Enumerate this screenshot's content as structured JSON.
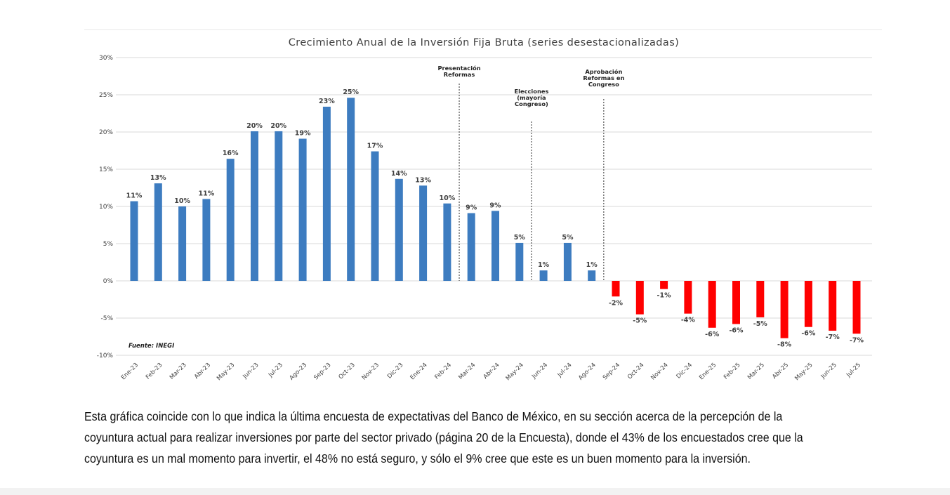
{
  "chart_data": {
    "type": "bar",
    "title": "Crecimiento Anual de la Inversión Fija Bruta (series desestacionalizadas)",
    "xlabel": "",
    "ylabel": "",
    "ylim": [
      -10,
      30
    ],
    "yticks": [
      "30%",
      "25%",
      "20%",
      "15%",
      "10%",
      "5%",
      "0%",
      "-5%",
      "-10%"
    ],
    "ytick_values": [
      30,
      25,
      20,
      15,
      10,
      5,
      0,
      -5,
      -10
    ],
    "grid": true,
    "categories": [
      "Ene-23",
      "Feb-23",
      "Mar-23",
      "Abr-23",
      "May-23",
      "Jun-23",
      "Jul-23",
      "Ago-23",
      "Sep-23",
      "Oct-23",
      "Nov-23",
      "Dic-23",
      "Ene-24",
      "Feb-24",
      "Mar-24",
      "Abr-24",
      "May-24",
      "Jun-24",
      "Jul-24",
      "Ago-24",
      "Sep-24",
      "Oct-24",
      "Nov-24",
      "Dic-24",
      "Ene-25",
      "Feb-25",
      "Mar-25",
      "Abr-25",
      "May-25",
      "Jun-25",
      "Jul-25"
    ],
    "values": [
      10.7,
      13.1,
      10.0,
      11.0,
      16.4,
      20.1,
      20.1,
      19.1,
      23.4,
      24.6,
      17.4,
      13.7,
      12.8,
      10.4,
      9.1,
      9.4,
      5.1,
      1.4,
      5.1,
      1.4,
      -2.1,
      -4.5,
      -1.1,
      -4.4,
      -6.3,
      -5.8,
      -4.9,
      -7.7,
      -6.2,
      -6.7,
      -7.1
    ],
    "labels": [
      "11%",
      "13%",
      "10%",
      "11%",
      "16%",
      "20%",
      "20%",
      "19%",
      "23%",
      "25%",
      "17%",
      "14%",
      "13%",
      "10%",
      "9%",
      "9%",
      "5%",
      "1%",
      "5%",
      "1%",
      "-2%",
      "-5%",
      "-1%",
      "-4%",
      "-6%",
      "-6%",
      "-5%",
      "-8%",
      "-6%",
      "-7%",
      "-7%"
    ],
    "colors": {
      "positive": "#3d7cc0",
      "negative": "#ff0000",
      "grid": "#d9d9d9",
      "text": "#404040",
      "marker": "#555555"
    },
    "annotations": [
      {
        "after_category": "Feb-24",
        "lines": [
          "Presentación",
          "Reformas"
        ]
      },
      {
        "after_category": "May-24",
        "lines": [
          "Elecciones",
          "(mayoría",
          "Congreso)"
        ]
      },
      {
        "after_category": "Ago-24",
        "lines": [
          "Aprobación",
          "Reformas en",
          "Congreso"
        ]
      }
    ],
    "source_note": "Fuente: INEGI"
  },
  "paragraph": "Esta gráfica coincide con lo que indica la última encuesta de expectativas del Banco de México, en su sección acerca de la percepción de la coyuntura actual para realizar inversiones por parte del sector privado (página 20 de la Encuesta), donde el 43% de los encuestados cree que la coyuntura es un mal momento para invertir, el 48% no está seguro, y sólo el 9% cree que este es un buen momento para la inversión."
}
